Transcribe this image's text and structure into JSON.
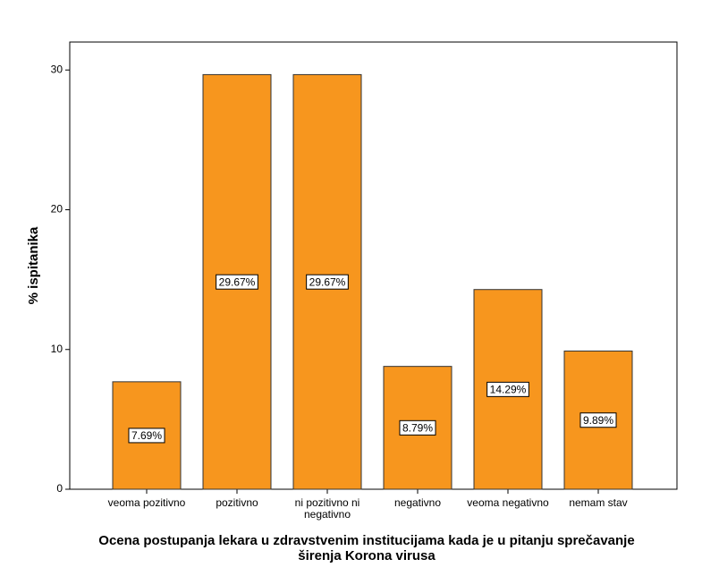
{
  "chart_data": {
    "type": "bar",
    "x_label": "Ocena postupanja lekara u zdravstvenim institucijama kada je u pitanju sprečavanje širenja Korona virusa",
    "y_label": "% ispitanika",
    "categories": [
      "veoma pozitivno",
      "pozitivno",
      "ni pozitivno ni negativno",
      "negativno",
      "veoma negativno",
      "nemam stav"
    ],
    "values": [
      7.69,
      29.67,
      29.67,
      8.79,
      14.29,
      9.89
    ],
    "value_labels": [
      "7.69%",
      "29.67%",
      "29.67%",
      "8.79%",
      "14.29%",
      "9.89%"
    ],
    "color": "#f7961e",
    "ylim": [
      0,
      32
    ],
    "yticks": [
      0,
      10,
      20,
      30
    ],
    "grid": false
  }
}
